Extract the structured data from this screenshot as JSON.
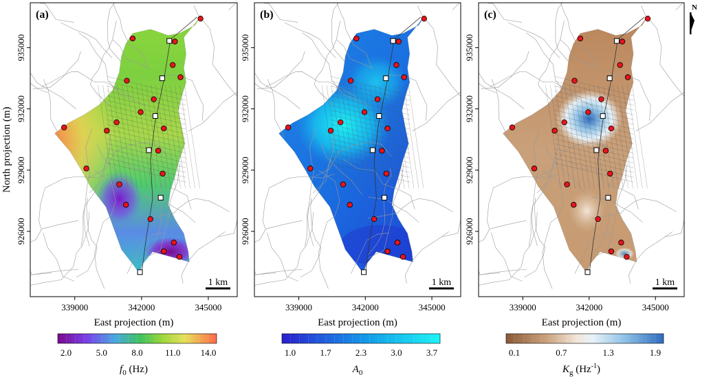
{
  "panels": [
    {
      "id": "a",
      "label": "(a)",
      "colormap": "viridis",
      "colorbar": {
        "ticks": [
          "2.0",
          "5.0",
          "8.0",
          "11.0",
          "14.0"
        ],
        "label_main": "f",
        "label_sub": "0",
        "label_unit": " (Hz)"
      }
    },
    {
      "id": "b",
      "label": "(b)",
      "colormap": "blues",
      "colorbar": {
        "ticks": [
          "1.0",
          "1.7",
          "2.3",
          "3.0",
          "3.7"
        ],
        "label_main": "A",
        "label_sub": "0",
        "label_unit": ""
      }
    },
    {
      "id": "c",
      "label": "(c)",
      "colormap": "brownblue",
      "colorbar": {
        "ticks": [
          "0.1",
          "0.7",
          "1.3",
          "1.9"
        ],
        "label_main": "K",
        "label_sub": "g",
        "label_unit": " (Hz",
        "label_sup": "-1",
        "label_close": ")"
      }
    }
  ],
  "axes": {
    "xlabel": "East projection (m)",
    "ylabel": "North projection (m)",
    "x_ticks": [
      "339000",
      "342000",
      "345000"
    ],
    "y_ticks": [
      "926000",
      "929000",
      "932000",
      "935000"
    ]
  },
  "scale_bar": "1 km",
  "north_arrow": "N",
  "colors": {
    "station_marker": "#e8141c",
    "reference_marker": "#ffffff",
    "road_lines": "#8a8a8a"
  },
  "stations": [
    {
      "x": 341600,
      "y": 935450
    },
    {
      "x": 343500,
      "y": 935300
    },
    {
      "x": 344650,
      "y": 936420
    },
    {
      "x": 343400,
      "y": 934150
    },
    {
      "x": 343750,
      "y": 933550
    },
    {
      "x": 341340,
      "y": 933380
    },
    {
      "x": 342550,
      "y": 932470
    },
    {
      "x": 341960,
      "y": 931840
    },
    {
      "x": 340880,
      "y": 931340
    },
    {
      "x": 340440,
      "y": 930930
    },
    {
      "x": 343000,
      "y": 931040
    },
    {
      "x": 338520,
      "y": 931090
    },
    {
      "x": 342750,
      "y": 929950
    },
    {
      "x": 339520,
      "y": 929080
    },
    {
      "x": 342950,
      "y": 928830
    },
    {
      "x": 341000,
      "y": 928300
    },
    {
      "x": 341300,
      "y": 927300
    },
    {
      "x": 342400,
      "y": 926600
    },
    {
      "x": 343450,
      "y": 925450
    },
    {
      "x": 343000,
      "y": 925020
    },
    {
      "x": 343700,
      "y": 924750
    }
  ],
  "reference_points": [
    {
      "x": 343250,
      "y": 935330
    },
    {
      "x": 342930,
      "y": 933500
    },
    {
      "x": 342620,
      "y": 931650
    },
    {
      "x": 342330,
      "y": 929980
    },
    {
      "x": 342860,
      "y": 927650
    },
    {
      "x": 341930,
      "y": 924000
    }
  ]
}
